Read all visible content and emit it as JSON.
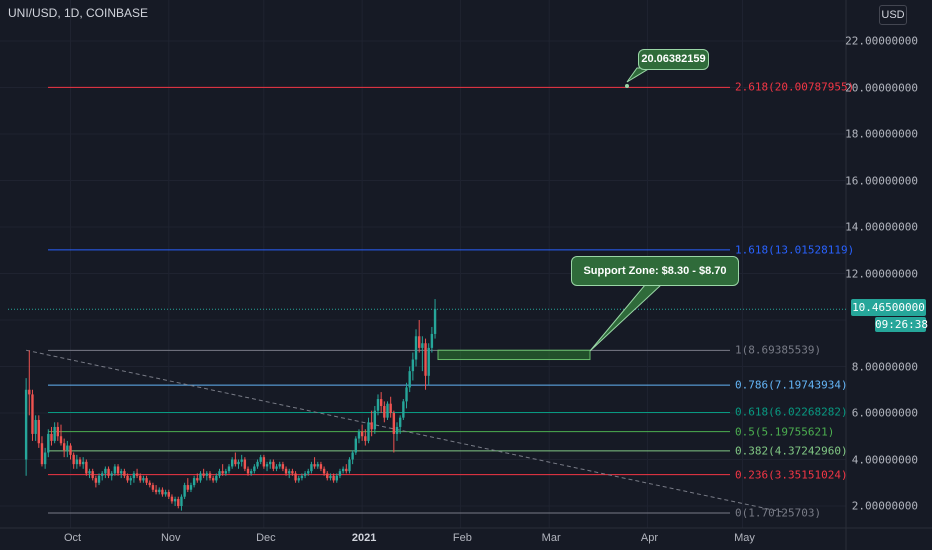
{
  "header": {
    "title": "UNI/USD, 1D, COINBASE",
    "currency": "USD"
  },
  "price_tag": {
    "value": "10.46500000",
    "countdown": "09:26:38"
  },
  "colors": {
    "background": "#161a25",
    "up": "#26a69a",
    "down": "#ef5350",
    "text": "#b2b5be"
  },
  "annotations": {
    "target": "20.06382159",
    "support": "Support Zone: $8.30 - $8.70"
  },
  "chart_data": {
    "type": "candlestick",
    "symbol": "UNI/USD",
    "interval": "1D",
    "exchange": "COINBASE",
    "x_ticks": [
      "Oct",
      "Nov",
      "Dec",
      "2021",
      "Feb",
      "Mar",
      "Apr",
      "May"
    ],
    "y_ticks": [
      "2.00000000",
      "4.00000000",
      "6.00000000",
      "8.00000000",
      "10.00000000",
      "12.00000000",
      "14.00000000",
      "16.00000000",
      "18.00000000",
      "20.00000000",
      "22.00000000"
    ],
    "ylim": [
      1.0,
      22.5
    ],
    "last_price": 10.465,
    "fib_levels": [
      {
        "label": "0(1.70125703)",
        "value": 1.70125703,
        "color": "#787b86"
      },
      {
        "label": "0.236(3.35151024)",
        "value": 3.35151024,
        "color": "#f23645"
      },
      {
        "label": "0.382(4.37242960)",
        "value": 4.3724296,
        "color": "#81c784"
      },
      {
        "label": "0.5(5.19755621)",
        "value": 5.19755621,
        "color": "#4caf50"
      },
      {
        "label": "0.618(6.02268282)",
        "value": 6.02268282,
        "color": "#089981"
      },
      {
        "label": "0.786(7.19743934)",
        "value": 7.19743934,
        "color": "#64b5f6"
      },
      {
        "label": "1(8.69385539)",
        "value": 8.69385539,
        "color": "#787b86"
      },
      {
        "label": "1.618(13.01528119)",
        "value": 13.01528119,
        "color": "#2962ff"
      },
      {
        "label": "2.618(20.00787955)",
        "value": 20.00787955,
        "color": "#f23645"
      }
    ],
    "support_zone": [
      8.3,
      8.7
    ],
    "target_price": 20.06382159,
    "trendline": {
      "from": [
        "2020-09-17",
        8.7
      ],
      "to": [
        "2021-05-15",
        1.7
      ]
    },
    "candles": [
      [
        "2020-09-17",
        4.0,
        7.5,
        3.3,
        7.0
      ],
      [
        "2020-09-18",
        7.0,
        8.7,
        5.9,
        6.8
      ],
      [
        "2020-09-19",
        6.8,
        7.0,
        4.8,
        5.1
      ],
      [
        "2020-09-20",
        5.1,
        5.9,
        4.8,
        5.7
      ],
      [
        "2020-09-21",
        5.7,
        5.9,
        4.5,
        4.7
      ],
      [
        "2020-09-22",
        4.7,
        5.0,
        3.7,
        3.8
      ],
      [
        "2020-09-23",
        3.8,
        4.5,
        3.6,
        4.3
      ],
      [
        "2020-09-24",
        4.3,
        5.3,
        4.1,
        5.1
      ],
      [
        "2020-09-25",
        5.1,
        5.4,
        4.6,
        4.8
      ],
      [
        "2020-09-26",
        4.8,
        5.6,
        4.7,
        5.4
      ],
      [
        "2020-09-27",
        5.4,
        5.6,
        4.8,
        5.0
      ],
      [
        "2020-09-28",
        5.0,
        5.5,
        4.6,
        4.7
      ],
      [
        "2020-09-29",
        4.7,
        4.9,
        4.1,
        4.4
      ],
      [
        "2020-09-30",
        4.4,
        4.8,
        4.1,
        4.6
      ],
      [
        "2020-10-01",
        4.6,
        4.7,
        4.0,
        4.2
      ],
      [
        "2020-10-02",
        4.2,
        4.3,
        3.6,
        3.8
      ],
      [
        "2020-10-03",
        3.8,
        4.2,
        3.6,
        4.0
      ],
      [
        "2020-10-04",
        4.0,
        4.1,
        3.7,
        3.8
      ],
      [
        "2020-10-05",
        3.8,
        4.1,
        3.6,
        3.9
      ],
      [
        "2020-10-06",
        3.9,
        4.0,
        3.3,
        3.4
      ],
      [
        "2020-10-07",
        3.4,
        3.6,
        3.2,
        3.5
      ],
      [
        "2020-10-08",
        3.5,
        3.6,
        3.1,
        3.2
      ],
      [
        "2020-10-09",
        3.2,
        3.3,
        2.8,
        3.0
      ],
      [
        "2020-10-10",
        3.0,
        3.4,
        2.9,
        3.3
      ],
      [
        "2020-10-11",
        3.3,
        3.5,
        3.1,
        3.4
      ],
      [
        "2020-10-12",
        3.4,
        3.7,
        3.2,
        3.6
      ],
      [
        "2020-10-13",
        3.6,
        3.7,
        3.2,
        3.3
      ],
      [
        "2020-10-14",
        3.3,
        3.5,
        3.1,
        3.4
      ],
      [
        "2020-10-15",
        3.4,
        3.8,
        3.3,
        3.7
      ],
      [
        "2020-10-16",
        3.7,
        3.8,
        3.3,
        3.4
      ],
      [
        "2020-10-17",
        3.4,
        3.6,
        3.2,
        3.5
      ],
      [
        "2020-10-18",
        3.5,
        3.6,
        3.2,
        3.3
      ],
      [
        "2020-10-19",
        3.3,
        3.4,
        3.0,
        3.1
      ],
      [
        "2020-10-20",
        3.1,
        3.3,
        2.9,
        3.2
      ],
      [
        "2020-10-21",
        3.2,
        3.5,
        3.0,
        3.4
      ],
      [
        "2020-10-22",
        3.4,
        3.6,
        3.2,
        3.3
      ],
      [
        "2020-10-23",
        3.3,
        3.4,
        3.0,
        3.1
      ],
      [
        "2020-10-24",
        3.1,
        3.3,
        3.0,
        3.2
      ],
      [
        "2020-10-25",
        3.2,
        3.3,
        2.9,
        3.0
      ],
      [
        "2020-10-26",
        3.0,
        3.1,
        2.8,
        2.9
      ],
      [
        "2020-10-27",
        2.9,
        3.0,
        2.6,
        2.7
      ],
      [
        "2020-10-28",
        2.7,
        2.9,
        2.5,
        2.6
      ],
      [
        "2020-10-29",
        2.6,
        2.8,
        2.5,
        2.7
      ],
      [
        "2020-10-30",
        2.7,
        2.8,
        2.4,
        2.5
      ],
      [
        "2020-10-31",
        2.5,
        2.7,
        2.4,
        2.6
      ],
      [
        "2020-11-01",
        2.6,
        2.7,
        2.3,
        2.4
      ],
      [
        "2020-11-02",
        2.4,
        2.5,
        2.1,
        2.2
      ],
      [
        "2020-11-03",
        2.2,
        2.4,
        2.0,
        2.3
      ],
      [
        "2020-11-04",
        2.3,
        2.4,
        1.9,
        2.0
      ],
      [
        "2020-11-05",
        2.0,
        2.5,
        1.8,
        2.4
      ],
      [
        "2020-11-06",
        2.4,
        3.0,
        2.3,
        2.9
      ],
      [
        "2020-11-07",
        2.9,
        3.2,
        2.6,
        2.7
      ],
      [
        "2020-11-08",
        2.7,
        3.0,
        2.6,
        2.9
      ],
      [
        "2020-11-09",
        2.9,
        3.3,
        2.8,
        3.2
      ],
      [
        "2020-11-10",
        3.2,
        3.4,
        3.0,
        3.1
      ],
      [
        "2020-11-11",
        3.1,
        3.5,
        3.0,
        3.4
      ],
      [
        "2020-11-12",
        3.4,
        3.6,
        3.2,
        3.3
      ],
      [
        "2020-11-13",
        3.3,
        3.5,
        3.1,
        3.4
      ],
      [
        "2020-11-14",
        3.4,
        3.5,
        3.1,
        3.2
      ],
      [
        "2020-11-15",
        3.2,
        3.3,
        3.0,
        3.1
      ],
      [
        "2020-11-16",
        3.1,
        3.4,
        3.0,
        3.3
      ],
      [
        "2020-11-17",
        3.3,
        3.6,
        3.2,
        3.5
      ],
      [
        "2020-11-18",
        3.5,
        3.8,
        3.3,
        3.4
      ],
      [
        "2020-11-19",
        3.4,
        3.6,
        3.3,
        3.5
      ],
      [
        "2020-11-20",
        3.5,
        3.8,
        3.4,
        3.7
      ],
      [
        "2020-11-21",
        3.7,
        4.1,
        3.6,
        4.0
      ],
      [
        "2020-11-22",
        4.0,
        4.3,
        3.7,
        3.8
      ],
      [
        "2020-11-23",
        3.8,
        4.0,
        3.6,
        3.9
      ],
      [
        "2020-11-24",
        3.9,
        4.2,
        3.7,
        4.0
      ],
      [
        "2020-11-25",
        4.0,
        4.1,
        3.5,
        3.6
      ],
      [
        "2020-11-26",
        3.6,
        3.7,
        3.3,
        3.4
      ],
      [
        "2020-11-27",
        3.4,
        3.6,
        3.3,
        3.5
      ],
      [
        "2020-11-28",
        3.5,
        3.8,
        3.4,
        3.7
      ],
      [
        "2020-11-29",
        3.7,
        4.0,
        3.6,
        3.9
      ],
      [
        "2020-11-30",
        3.9,
        4.2,
        3.8,
        4.1
      ],
      [
        "2020-12-01",
        4.1,
        4.2,
        3.6,
        3.7
      ],
      [
        "2020-12-02",
        3.7,
        3.9,
        3.5,
        3.8
      ],
      [
        "2020-12-03",
        3.8,
        4.0,
        3.6,
        3.9
      ],
      [
        "2020-12-04",
        3.9,
        4.0,
        3.5,
        3.6
      ],
      [
        "2020-12-05",
        3.6,
        3.8,
        3.5,
        3.7
      ],
      [
        "2020-12-06",
        3.7,
        3.9,
        3.6,
        3.8
      ],
      [
        "2020-12-07",
        3.8,
        3.9,
        3.5,
        3.6
      ],
      [
        "2020-12-08",
        3.6,
        3.7,
        3.3,
        3.4
      ],
      [
        "2020-12-09",
        3.4,
        3.6,
        3.2,
        3.5
      ],
      [
        "2020-12-10",
        3.5,
        3.6,
        3.3,
        3.4
      ],
      [
        "2020-12-11",
        3.4,
        3.5,
        3.0,
        3.1
      ],
      [
        "2020-12-12",
        3.1,
        3.3,
        3.0,
        3.2
      ],
      [
        "2020-12-13",
        3.2,
        3.4,
        3.1,
        3.3
      ],
      [
        "2020-12-14",
        3.3,
        3.5,
        3.2,
        3.4
      ],
      [
        "2020-12-15",
        3.4,
        3.6,
        3.3,
        3.5
      ],
      [
        "2020-12-16",
        3.5,
        3.9,
        3.4,
        3.8
      ],
      [
        "2020-12-17",
        3.8,
        4.1,
        3.6,
        3.7
      ],
      [
        "2020-12-18",
        3.7,
        3.9,
        3.6,
        3.8
      ],
      [
        "2020-12-19",
        3.8,
        3.9,
        3.5,
        3.6
      ],
      [
        "2020-12-20",
        3.6,
        3.7,
        3.3,
        3.4
      ],
      [
        "2020-12-21",
        3.4,
        3.5,
        3.1,
        3.2
      ],
      [
        "2020-12-22",
        3.2,
        3.4,
        3.1,
        3.3
      ],
      [
        "2020-12-23",
        3.3,
        3.4,
        3.0,
        3.1
      ],
      [
        "2020-12-24",
        3.1,
        3.4,
        3.0,
        3.3
      ],
      [
        "2020-12-25",
        3.3,
        3.6,
        3.2,
        3.5
      ],
      [
        "2020-12-26",
        3.5,
        3.7,
        3.4,
        3.6
      ],
      [
        "2020-12-27",
        3.6,
        3.8,
        3.4,
        3.5
      ],
      [
        "2020-12-28",
        3.5,
        4.1,
        3.4,
        4.0
      ],
      [
        "2020-12-29",
        4.0,
        4.4,
        3.8,
        4.3
      ],
      [
        "2020-12-30",
        4.3,
        5.0,
        4.2,
        4.9
      ],
      [
        "2020-12-31",
        4.9,
        5.3,
        4.7,
        5.2
      ],
      [
        "2021-01-01",
        5.2,
        5.5,
        4.8,
        5.0
      ],
      [
        "2021-01-02",
        5.0,
        5.3,
        4.6,
        4.8
      ],
      [
        "2021-01-03",
        4.8,
        5.8,
        4.7,
        5.6
      ],
      [
        "2021-01-04",
        5.6,
        6.1,
        5.0,
        5.3
      ],
      [
        "2021-01-05",
        5.3,
        6.3,
        5.1,
        6.1
      ],
      [
        "2021-01-06",
        6.1,
        6.8,
        5.9,
        6.6
      ],
      [
        "2021-01-07",
        6.6,
        6.9,
        6.0,
        6.3
      ],
      [
        "2021-01-08",
        6.3,
        6.5,
        5.6,
        5.8
      ],
      [
        "2021-01-09",
        5.8,
        6.5,
        5.7,
        6.4
      ],
      [
        "2021-01-10",
        6.4,
        6.7,
        5.8,
        6.0
      ],
      [
        "2021-01-11",
        6.0,
        6.1,
        4.3,
        5.1
      ],
      [
        "2021-01-12",
        5.1,
        5.6,
        4.8,
        5.4
      ],
      [
        "2021-01-13",
        5.4,
        5.9,
        5.1,
        5.8
      ],
      [
        "2021-01-14",
        5.8,
        6.6,
        5.7,
        6.5
      ],
      [
        "2021-01-15",
        6.5,
        7.3,
        6.2,
        7.1
      ],
      [
        "2021-01-16",
        7.1,
        8.0,
        6.9,
        7.8
      ],
      [
        "2021-01-17",
        7.8,
        8.6,
        7.4,
        8.3
      ],
      [
        "2021-01-18",
        8.3,
        9.6,
        8.0,
        9.3
      ],
      [
        "2021-01-19",
        9.3,
        10.0,
        8.6,
        8.8
      ],
      [
        "2021-01-20",
        8.8,
        9.3,
        7.8,
        9.0
      ],
      [
        "2021-01-21",
        9.0,
        9.2,
        7.0,
        7.6
      ],
      [
        "2021-01-22",
        7.6,
        9.0,
        7.2,
        8.8
      ],
      [
        "2021-01-23",
        8.8,
        9.7,
        8.6,
        9.4
      ],
      [
        "2021-01-24",
        9.4,
        10.9,
        9.2,
        10.465
      ]
    ]
  }
}
